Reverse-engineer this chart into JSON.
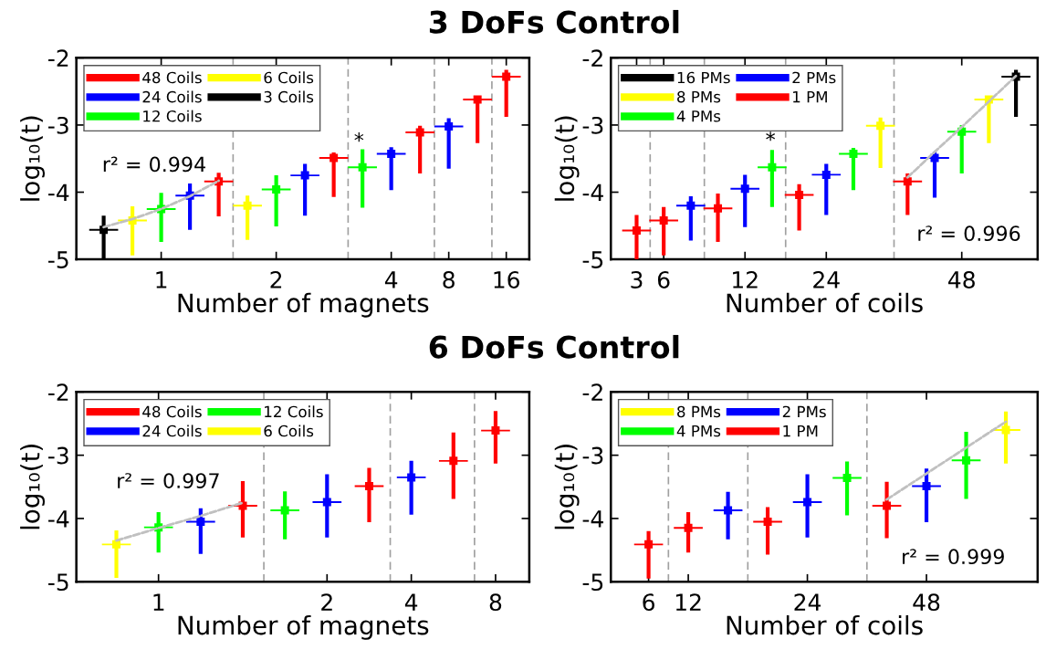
{
  "chart_data": [
    {
      "type": "scatter",
      "title": "3 DoFs Control",
      "xlabel": "Number of magnets",
      "ylabel": "log₁₀(t)",
      "categories": [
        null,
        null,
        "1",
        null,
        null,
        null,
        "2",
        null,
        null,
        null,
        "4",
        null,
        "8",
        null,
        "16"
      ],
      "ylim": [
        -5,
        -2
      ],
      "yticks": [
        -5,
        -4,
        -3,
        -2
      ],
      "grid": false,
      "legend": "top left",
      "series": [
        {
          "name": "48 Coils",
          "color": "#ff0000",
          "values": [
            null,
            null,
            null,
            null,
            -3.84,
            null,
            null,
            null,
            -3.49,
            null,
            null,
            -3.11,
            null,
            -2.62,
            -2.28
          ],
          "errors": [
            null,
            null,
            null,
            null,
            [
              -4.36,
              -3.71
            ],
            null,
            null,
            null,
            [
              -4.07,
              -3.41
            ],
            null,
            null,
            [
              -3.72,
              -3.01
            ],
            null,
            [
              -3.27,
              -2.61
            ],
            [
              -2.88,
              -2.18
            ]
          ]
        },
        {
          "name": "24 Coils",
          "color": "#0000ff",
          "values": [
            null,
            null,
            null,
            -4.05,
            null,
            null,
            null,
            -3.75,
            null,
            null,
            -3.43,
            null,
            -3.02,
            null,
            null
          ],
          "errors": [
            null,
            null,
            null,
            [
              -4.56,
              -3.87
            ],
            null,
            null,
            null,
            [
              -4.35,
              -3.58
            ],
            null,
            null,
            [
              -3.97,
              -3.33
            ],
            null,
            [
              -3.65,
              -2.9
            ],
            null,
            null
          ]
        },
        {
          "name": "12 Coils",
          "color": "#00ff00",
          "values": [
            null,
            null,
            -4.25,
            null,
            null,
            null,
            -3.96,
            null,
            null,
            -3.63,
            null,
            null,
            null,
            null,
            null
          ],
          "errors": [
            null,
            null,
            [
              -4.74,
              -4.01
            ],
            null,
            null,
            null,
            [
              -4.51,
              -3.75
            ],
            null,
            null,
            [
              -4.23,
              -3.36
            ],
            null,
            null,
            null,
            null,
            null
          ]
        },
        {
          "name": "6 Coils",
          "color": "#ffff00",
          "values": [
            null,
            -4.42,
            null,
            null,
            null,
            -4.2,
            null,
            null,
            null,
            null,
            null,
            null,
            null,
            null,
            null
          ],
          "errors": [
            null,
            [
              -4.94,
              -4.21
            ],
            null,
            null,
            null,
            [
              -4.71,
              -4.05
            ],
            null,
            null,
            null,
            null,
            null,
            null,
            null,
            null,
            null
          ]
        },
        {
          "name": "3 Coils",
          "color": "#000000",
          "values": [
            -4.56,
            null,
            null,
            null,
            null,
            null,
            null,
            null,
            null,
            null,
            null,
            null,
            null,
            null,
            null
          ],
          "errors": [
            [
              -5,
              -4.35
            ],
            null,
            null,
            null,
            null,
            null,
            null,
            null,
            null,
            null,
            null,
            null,
            null,
            null,
            null
          ]
        },
        {
          "type": "line",
          "color": "#c0c0c0",
          "line_style": "dashed",
          "values": [
            -4.52,
            -4.4,
            -4.25,
            -4.06,
            -3.83,
            null,
            null,
            null,
            null,
            null,
            null,
            null,
            null,
            null,
            null
          ]
        }
      ],
      "annotations": [
        "r² = 0.994",
        "*"
      ]
    },
    {
      "type": "scatter",
      "xlabel": "Number of coils",
      "ylabel": "log₁₀(t)",
      "categories": [
        "3",
        "6",
        null,
        null,
        "12",
        null,
        null,
        "24",
        null,
        null,
        null,
        null,
        "48",
        null,
        null
      ],
      "ylim": [
        -5,
        -2
      ],
      "yticks": [
        -5,
        -4,
        -3,
        -2
      ],
      "grid": false,
      "legend": "top left",
      "series": [
        {
          "name": "16 PMs",
          "color": "#000000",
          "values": [
            null,
            null,
            null,
            null,
            null,
            null,
            null,
            null,
            null,
            null,
            null,
            null,
            null,
            null,
            -2.28
          ],
          "errors": [
            null,
            null,
            null,
            null,
            null,
            null,
            null,
            null,
            null,
            null,
            null,
            null,
            null,
            null,
            [
              -2.88,
              -2.18
            ]
          ]
        },
        {
          "name": "8 PMs",
          "color": "#ffff00",
          "values": [
            null,
            null,
            null,
            null,
            null,
            null,
            null,
            null,
            null,
            -3.01,
            null,
            null,
            null,
            -2.62,
            null
          ],
          "errors": [
            null,
            null,
            null,
            null,
            null,
            null,
            null,
            null,
            null,
            [
              -3.64,
              -2.89
            ],
            null,
            null,
            null,
            [
              -3.27,
              -2.61
            ],
            null
          ]
        },
        {
          "name": "4 PMs",
          "color": "#00ff00",
          "values": [
            null,
            null,
            null,
            null,
            null,
            -3.63,
            null,
            null,
            -3.43,
            null,
            null,
            null,
            -3.1,
            null,
            null
          ],
          "errors": [
            null,
            null,
            null,
            null,
            null,
            [
              -4.22,
              -3.37
            ],
            null,
            null,
            [
              -3.97,
              -3.34
            ],
            null,
            null,
            null,
            [
              -3.72,
              -3.0
            ],
            null,
            null
          ]
        },
        {
          "name": "2 PMs",
          "color": "#0000ff",
          "values": [
            null,
            null,
            -4.2,
            null,
            -3.95,
            null,
            null,
            -3.74,
            null,
            null,
            null,
            -3.49,
            null,
            null,
            null
          ],
          "errors": [
            null,
            null,
            [
              -4.72,
              -4.06
            ],
            null,
            [
              -4.52,
              -3.74
            ],
            null,
            null,
            [
              -4.34,
              -3.58
            ],
            null,
            null,
            null,
            [
              -4.08,
              -3.4
            ],
            null,
            null,
            null
          ]
        },
        {
          "name": "1 PM",
          "color": "#ff0000",
          "values": [
            -4.57,
            -4.42,
            null,
            -4.24,
            null,
            null,
            -4.04,
            null,
            null,
            null,
            -3.84,
            null,
            null,
            null,
            null
          ],
          "errors": [
            [
              -5,
              -4.34
            ],
            [
              -4.94,
              -4.22
            ],
            null,
            [
              -4.74,
              -4.02
            ],
            null,
            null,
            [
              -4.57,
              -3.88
            ],
            null,
            null,
            null,
            [
              -4.34,
              -3.72
            ],
            null,
            null,
            null,
            null
          ]
        },
        {
          "type": "line",
          "color": "#c0c0c0",
          "line_style": "dashed",
          "values": [
            null,
            null,
            null,
            null,
            null,
            null,
            null,
            null,
            null,
            null,
            -3.78,
            -3.4,
            -3.03,
            -2.65,
            -2.27
          ]
        }
      ],
      "annotations": [
        "r² = 0.996",
        "*"
      ]
    },
    {
      "type": "scatter",
      "title": "6 DoFs Control",
      "xlabel": "Number of magnets",
      "ylabel": "log₁₀(t)",
      "categories": [
        null,
        "1",
        null,
        null,
        null,
        "2",
        null,
        "4",
        null,
        "8"
      ],
      "ylim": [
        -5,
        -2
      ],
      "yticks": [
        -5,
        -4,
        -3,
        -2
      ],
      "grid": false,
      "legend": "top left",
      "series": [
        {
          "name": "48 Coils",
          "color": "#ff0000",
          "values": [
            null,
            null,
            null,
            -3.8,
            null,
            null,
            -3.49,
            null,
            -3.09,
            -2.61
          ],
          "errors": [
            null,
            null,
            null,
            [
              -4.3,
              -3.41
            ],
            null,
            null,
            [
              -4.06,
              -3.2
            ],
            null,
            [
              -3.69,
              -2.64
            ],
            [
              -3.13,
              -2.3
            ]
          ]
        },
        {
          "name": "24 Coils",
          "color": "#0000ff",
          "values": [
            null,
            null,
            -4.05,
            null,
            null,
            -3.74,
            null,
            -3.35,
            null,
            null
          ],
          "errors": [
            null,
            null,
            [
              -4.56,
              -3.84
            ],
            null,
            null,
            [
              -4.3,
              -3.3
            ],
            null,
            [
              -3.94,
              -3.09
            ],
            null,
            null
          ]
        },
        {
          "name": "12 Coils",
          "color": "#00ff00",
          "values": [
            null,
            -4.14,
            null,
            null,
            -3.87,
            null,
            null,
            null,
            null,
            null
          ],
          "errors": [
            null,
            [
              -4.54,
              -3.9
            ],
            null,
            null,
            [
              -4.33,
              -3.57
            ],
            null,
            null,
            null,
            null,
            null
          ]
        },
        {
          "name": "6 Coils",
          "color": "#ffff00",
          "values": [
            -4.41,
            null,
            null,
            null,
            null,
            null,
            null,
            null,
            null,
            null
          ],
          "errors": [
            [
              -4.94,
              -4.19
            ],
            null,
            null,
            null,
            null,
            null,
            null,
            null,
            null,
            null
          ]
        },
        {
          "type": "line",
          "color": "#c0c0c0",
          "line_style": "dashed",
          "values": [
            -4.35,
            -4.15,
            -3.96,
            -3.75,
            null,
            null,
            null,
            null,
            null,
            null
          ]
        }
      ],
      "annotations": [
        "r² = 0.997"
      ]
    },
    {
      "type": "scatter",
      "xlabel": "Number of coils",
      "ylabel": "log₁₀(t)",
      "categories": [
        "6",
        "12",
        null,
        null,
        "24",
        null,
        null,
        "48",
        null,
        null
      ],
      "ylim": [
        -5,
        -2
      ],
      "yticks": [
        -5,
        -4,
        -3,
        -2
      ],
      "grid": false,
      "legend": "top left",
      "series": [
        {
          "name": "8 PMs",
          "color": "#ffff00",
          "values": [
            null,
            null,
            null,
            null,
            null,
            null,
            null,
            null,
            null,
            -2.6
          ],
          "errors": [
            null,
            null,
            null,
            null,
            null,
            null,
            null,
            null,
            null,
            [
              -3.13,
              -2.31
            ]
          ]
        },
        {
          "name": "4 PMs",
          "color": "#00ff00",
          "values": [
            null,
            null,
            null,
            null,
            null,
            -3.36,
            null,
            null,
            -3.08,
            null
          ],
          "errors": [
            null,
            null,
            null,
            null,
            null,
            [
              -3.95,
              -3.1
            ],
            null,
            null,
            [
              -3.69,
              -2.63
            ],
            null
          ]
        },
        {
          "name": "2 PMs",
          "color": "#0000ff",
          "values": [
            null,
            null,
            -3.87,
            null,
            -3.74,
            null,
            null,
            -3.49,
            null,
            null
          ],
          "errors": [
            null,
            null,
            [
              -4.33,
              -3.58
            ],
            null,
            [
              -4.3,
              -3.3
            ],
            null,
            null,
            [
              -4.06,
              -3.21
            ],
            null,
            null
          ]
        },
        {
          "name": "1 PM",
          "color": "#ff0000",
          "values": [
            -4.41,
            -4.15,
            null,
            -4.05,
            null,
            null,
            -3.8,
            null,
            null,
            null
          ],
          "errors": [
            [
              -4.95,
              -4.2
            ],
            [
              -4.54,
              -3.9
            ],
            null,
            [
              -4.57,
              -3.82
            ],
            null,
            null,
            [
              -4.31,
              -3.42
            ],
            null,
            null,
            null
          ]
        },
        {
          "type": "line",
          "color": "#c0c0c0",
          "line_style": "dashed",
          "values": [
            null,
            null,
            null,
            null,
            null,
            null,
            -3.7,
            -3.29,
            -2.88,
            -2.47
          ]
        }
      ],
      "annotations": [
        "r² = 0.999"
      ]
    }
  ]
}
